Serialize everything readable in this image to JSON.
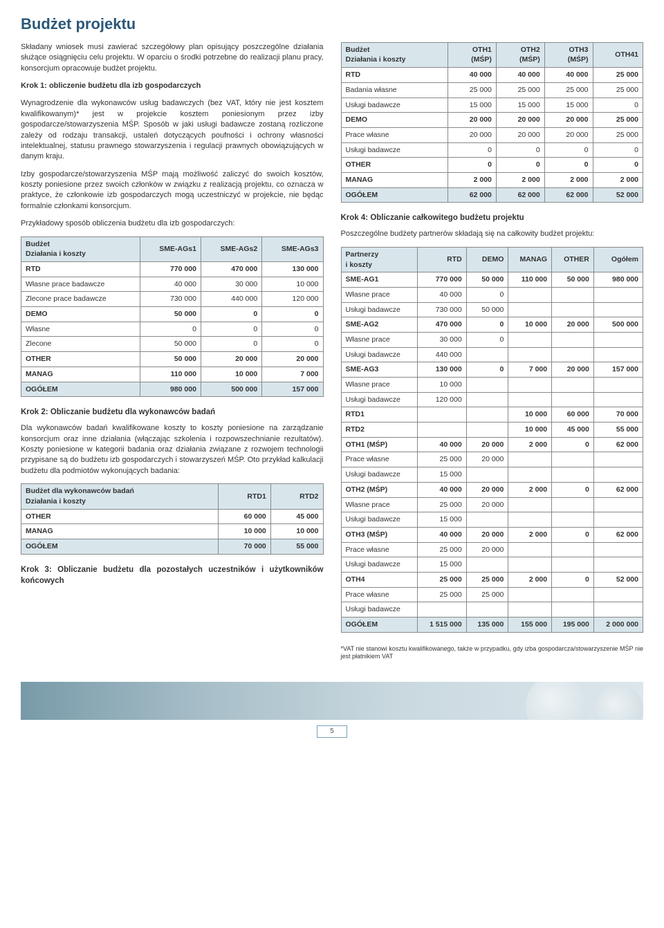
{
  "title": "Budżet projektu",
  "intro_p1": "Składany wniosek musi zawierać szczegółowy plan opisujący poszczególne działania służące osiągnięciu celu projektu. W oparciu o środki potrzebne do realizacji planu pracy, konsorcjum opracowuje budżet projektu.",
  "step1_title": "Krok 1: obliczenie budżetu dla izb gospodarczych",
  "step1_p1": "Wynagrodzenie dla wykonawców usług badawczych (bez VAT, który nie jest kosztem kwalifikowanym)* jest w projekcie kosztem poniesionym przez izby gospodarcze/stowarzyszenia MŚP. Sposób w jaki usługi badawcze zostaną rozliczone zależy od rodzaju transakcji, ustaleń dotyczących poufności i ochrony własności intelektualnej, statusu prawnego stowarzyszenia i regulacji prawnych obowiązujących w danym kraju.",
  "step1_p2": "Izby gospodarcze/stowarzyszenia MŚP mają możliwość zaliczyć do swoich kosztów, koszty poniesione przez swoich członków w związku z realizacją projektu, co oznacza w praktyce, że członkowie izb gospodarczych mogą uczestniczyć w projekcie, nie będąc formalnie członkami konsorcjum.",
  "step1_p3": "Przykładowy sposób obliczenia budżetu dla izb gospodarczych:",
  "table1": {
    "header": [
      "Budżet\nDziałania i koszty",
      "SME-AGs1",
      "SME-AGs2",
      "SME-AGs3"
    ],
    "rows": [
      {
        "type": "section",
        "cells": [
          "RTD",
          "770 000",
          "470 000",
          "130 000"
        ]
      },
      {
        "type": "data",
        "cells": [
          "Własne prace badawcze",
          "40 000",
          "30 000",
          "10 000"
        ]
      },
      {
        "type": "data",
        "cells": [
          "Zlecone prace badawcze",
          "730 000",
          "440 000",
          "120 000"
        ]
      },
      {
        "type": "section",
        "cells": [
          "DEMO",
          "50 000",
          "0",
          "0"
        ]
      },
      {
        "type": "data",
        "cells": [
          "Własne",
          "0",
          "0",
          "0"
        ]
      },
      {
        "type": "data",
        "cells": [
          "Zlecone",
          "50 000",
          "0",
          "0"
        ]
      },
      {
        "type": "section",
        "cells": [
          "OTHER",
          "50 000",
          "20 000",
          "20 000"
        ]
      },
      {
        "type": "section",
        "cells": [
          "MANAG",
          "110 000",
          "10 000",
          "7 000"
        ]
      },
      {
        "type": "total",
        "cells": [
          "OGÓŁEM",
          "980 000",
          "500 000",
          "157 000"
        ]
      }
    ]
  },
  "step2_title": "Krok 2: Obliczanie budżetu dla wykonawców badań",
  "step2_p1": "Dla wykonawców badań kwalifikowane koszty to koszty poniesione na zarządzanie konsorcjum oraz inne działania (włączając szkolenia i rozpowszechnianie rezultatów). Koszty poniesione w kategorii badania oraz działania związane z rozwojem technologii przypisane są do budżetu izb gospodarczych i stowarzyszeń MŚP. Oto przykład kalkulacji budżetu dla podmiotów wykonujących badania:",
  "table2": {
    "header": [
      "Budżet dla wykonawców badań\nDziałania i koszty",
      "RTD1",
      "RTD2"
    ],
    "rows": [
      {
        "type": "section",
        "cells": [
          "OTHER",
          "60 000",
          "45 000"
        ]
      },
      {
        "type": "section",
        "cells": [
          "MANAG",
          "10 000",
          "10 000"
        ]
      },
      {
        "type": "total",
        "cells": [
          "OGÓŁEM",
          "70 000",
          "55 000"
        ]
      }
    ]
  },
  "step3_title": "Krok 3: Obliczanie budżetu dla pozostałych uczestników i użytkowników końcowych",
  "table3": {
    "header": [
      "Budżet\nDziałania i koszty",
      "OTH1\n(MŚP)",
      "OTH2\n(MŚP)",
      "OTH3\n(MŚP)",
      "OTH41"
    ],
    "rows": [
      {
        "type": "section",
        "cells": [
          "RTD",
          "40 000",
          "40 000",
          "40 000",
          "25 000"
        ]
      },
      {
        "type": "data",
        "cells": [
          "Badania własne",
          "25 000",
          "25 000",
          "25 000",
          "25 000"
        ]
      },
      {
        "type": "data",
        "cells": [
          "Usługi badawcze",
          "15 000",
          "15 000",
          "15 000",
          "0"
        ]
      },
      {
        "type": "section",
        "cells": [
          "DEMO",
          "20 000",
          "20 000",
          "20 000",
          "25 000"
        ]
      },
      {
        "type": "data",
        "cells": [
          "Prace własne",
          "20 000",
          "20 000",
          "20 000",
          "25 000"
        ]
      },
      {
        "type": "data",
        "cells": [
          "Usługi badawcze",
          "0",
          "0",
          "0",
          "0"
        ]
      },
      {
        "type": "section",
        "cells": [
          "OTHER",
          "0",
          "0",
          "0",
          "0"
        ]
      },
      {
        "type": "section",
        "cells": [
          "MANAG",
          "2 000",
          "2 000",
          "2 000",
          "2 000"
        ]
      },
      {
        "type": "total",
        "cells": [
          "OGÓŁEM",
          "62 000",
          "62 000",
          "62 000",
          "52 000"
        ]
      }
    ]
  },
  "step4_title": "Krok 4: Obliczanie całkowitego budżetu projektu",
  "step4_p1": "Poszczególne budżety partnerów składają się na całkowity budżet projektu:",
  "table4": {
    "header": [
      "Partnerzy\ni koszty",
      "RTD",
      "DEMO",
      "MANAG",
      "OTHER",
      "Ogółem"
    ],
    "rows": [
      {
        "type": "section",
        "cells": [
          "SME-AG1",
          "770 000",
          "50 000",
          "110 000",
          "50 000",
          "980 000"
        ]
      },
      {
        "type": "data",
        "cells": [
          "Własne prace",
          "40 000",
          "0",
          "",
          "",
          ""
        ]
      },
      {
        "type": "data",
        "cells": [
          "Usługi badawcze",
          "730 000",
          "50 000",
          "",
          "",
          ""
        ]
      },
      {
        "type": "section",
        "cells": [
          "SME-AG2",
          "470 000",
          "0",
          "10 000",
          "20 000",
          "500 000"
        ]
      },
      {
        "type": "data",
        "cells": [
          "Własne prace",
          "30 000",
          "0",
          "",
          "",
          ""
        ]
      },
      {
        "type": "data",
        "cells": [
          "Usługi badawcze",
          "440 000",
          "",
          "",
          "",
          ""
        ]
      },
      {
        "type": "section",
        "cells": [
          "SME-AG3",
          "130 000",
          "0",
          "7 000",
          "20 000",
          "157 000"
        ]
      },
      {
        "type": "data",
        "cells": [
          "Własne prace",
          "10 000",
          "",
          "",
          "",
          ""
        ]
      },
      {
        "type": "data",
        "cells": [
          "Usługi badawcze",
          "120 000",
          "",
          "",
          "",
          ""
        ]
      },
      {
        "type": "section",
        "cells": [
          "RTD1",
          "",
          "",
          "10 000",
          "60 000",
          "70 000"
        ]
      },
      {
        "type": "section",
        "cells": [
          "RTD2",
          "",
          "",
          "10 000",
          "45 000",
          "55 000"
        ]
      },
      {
        "type": "section",
        "cells": [
          "OTH1 (MŚP)",
          "40 000",
          "20 000",
          "2 000",
          "0",
          "62 000"
        ]
      },
      {
        "type": "data",
        "cells": [
          "Prace własne",
          "25 000",
          "20 000",
          "",
          "",
          ""
        ]
      },
      {
        "type": "data",
        "cells": [
          "Usługi badawcze",
          "15 000",
          "",
          "",
          "",
          ""
        ]
      },
      {
        "type": "section",
        "cells": [
          "OTH2 (MŚP)",
          "40 000",
          "20 000",
          "2 000",
          "0",
          "62 000"
        ]
      },
      {
        "type": "data",
        "cells": [
          "Własne prace",
          "25 000",
          "20 000",
          "",
          "",
          ""
        ]
      },
      {
        "type": "data",
        "cells": [
          "Usługi badawcze",
          "15 000",
          "",
          "",
          "",
          ""
        ]
      },
      {
        "type": "section",
        "cells": [
          "OTH3 (MŚP)",
          "40 000",
          "20 000",
          "2 000",
          "0",
          "62 000"
        ]
      },
      {
        "type": "data",
        "cells": [
          "Prace własne",
          "25 000",
          "20 000",
          "",
          "",
          ""
        ]
      },
      {
        "type": "data",
        "cells": [
          "Usługi badawcze",
          "15 000",
          "",
          "",
          "",
          ""
        ]
      },
      {
        "type": "section",
        "cells": [
          "OTH4",
          "25 000",
          "25 000",
          "2 000",
          "0",
          "52 000"
        ]
      },
      {
        "type": "data",
        "cells": [
          "Prace własne",
          "25 000",
          "25 000",
          "",
          "",
          ""
        ]
      },
      {
        "type": "data",
        "cells": [
          "Usługi badawcze",
          "",
          "",
          "",
          "",
          ""
        ]
      },
      {
        "type": "total",
        "cells": [
          "OGÓŁEM",
          "1 515 000",
          "135 000",
          "155 000",
          "195 000",
          "2 000 000"
        ]
      }
    ]
  },
  "footnote": "*VAT nie stanowi kosztu kwalifikowanego, także w przypadku, gdy izba gospodarcza/stowarzyszenie MŚP nie jest płatnikiem VAT",
  "page_number": "5"
}
